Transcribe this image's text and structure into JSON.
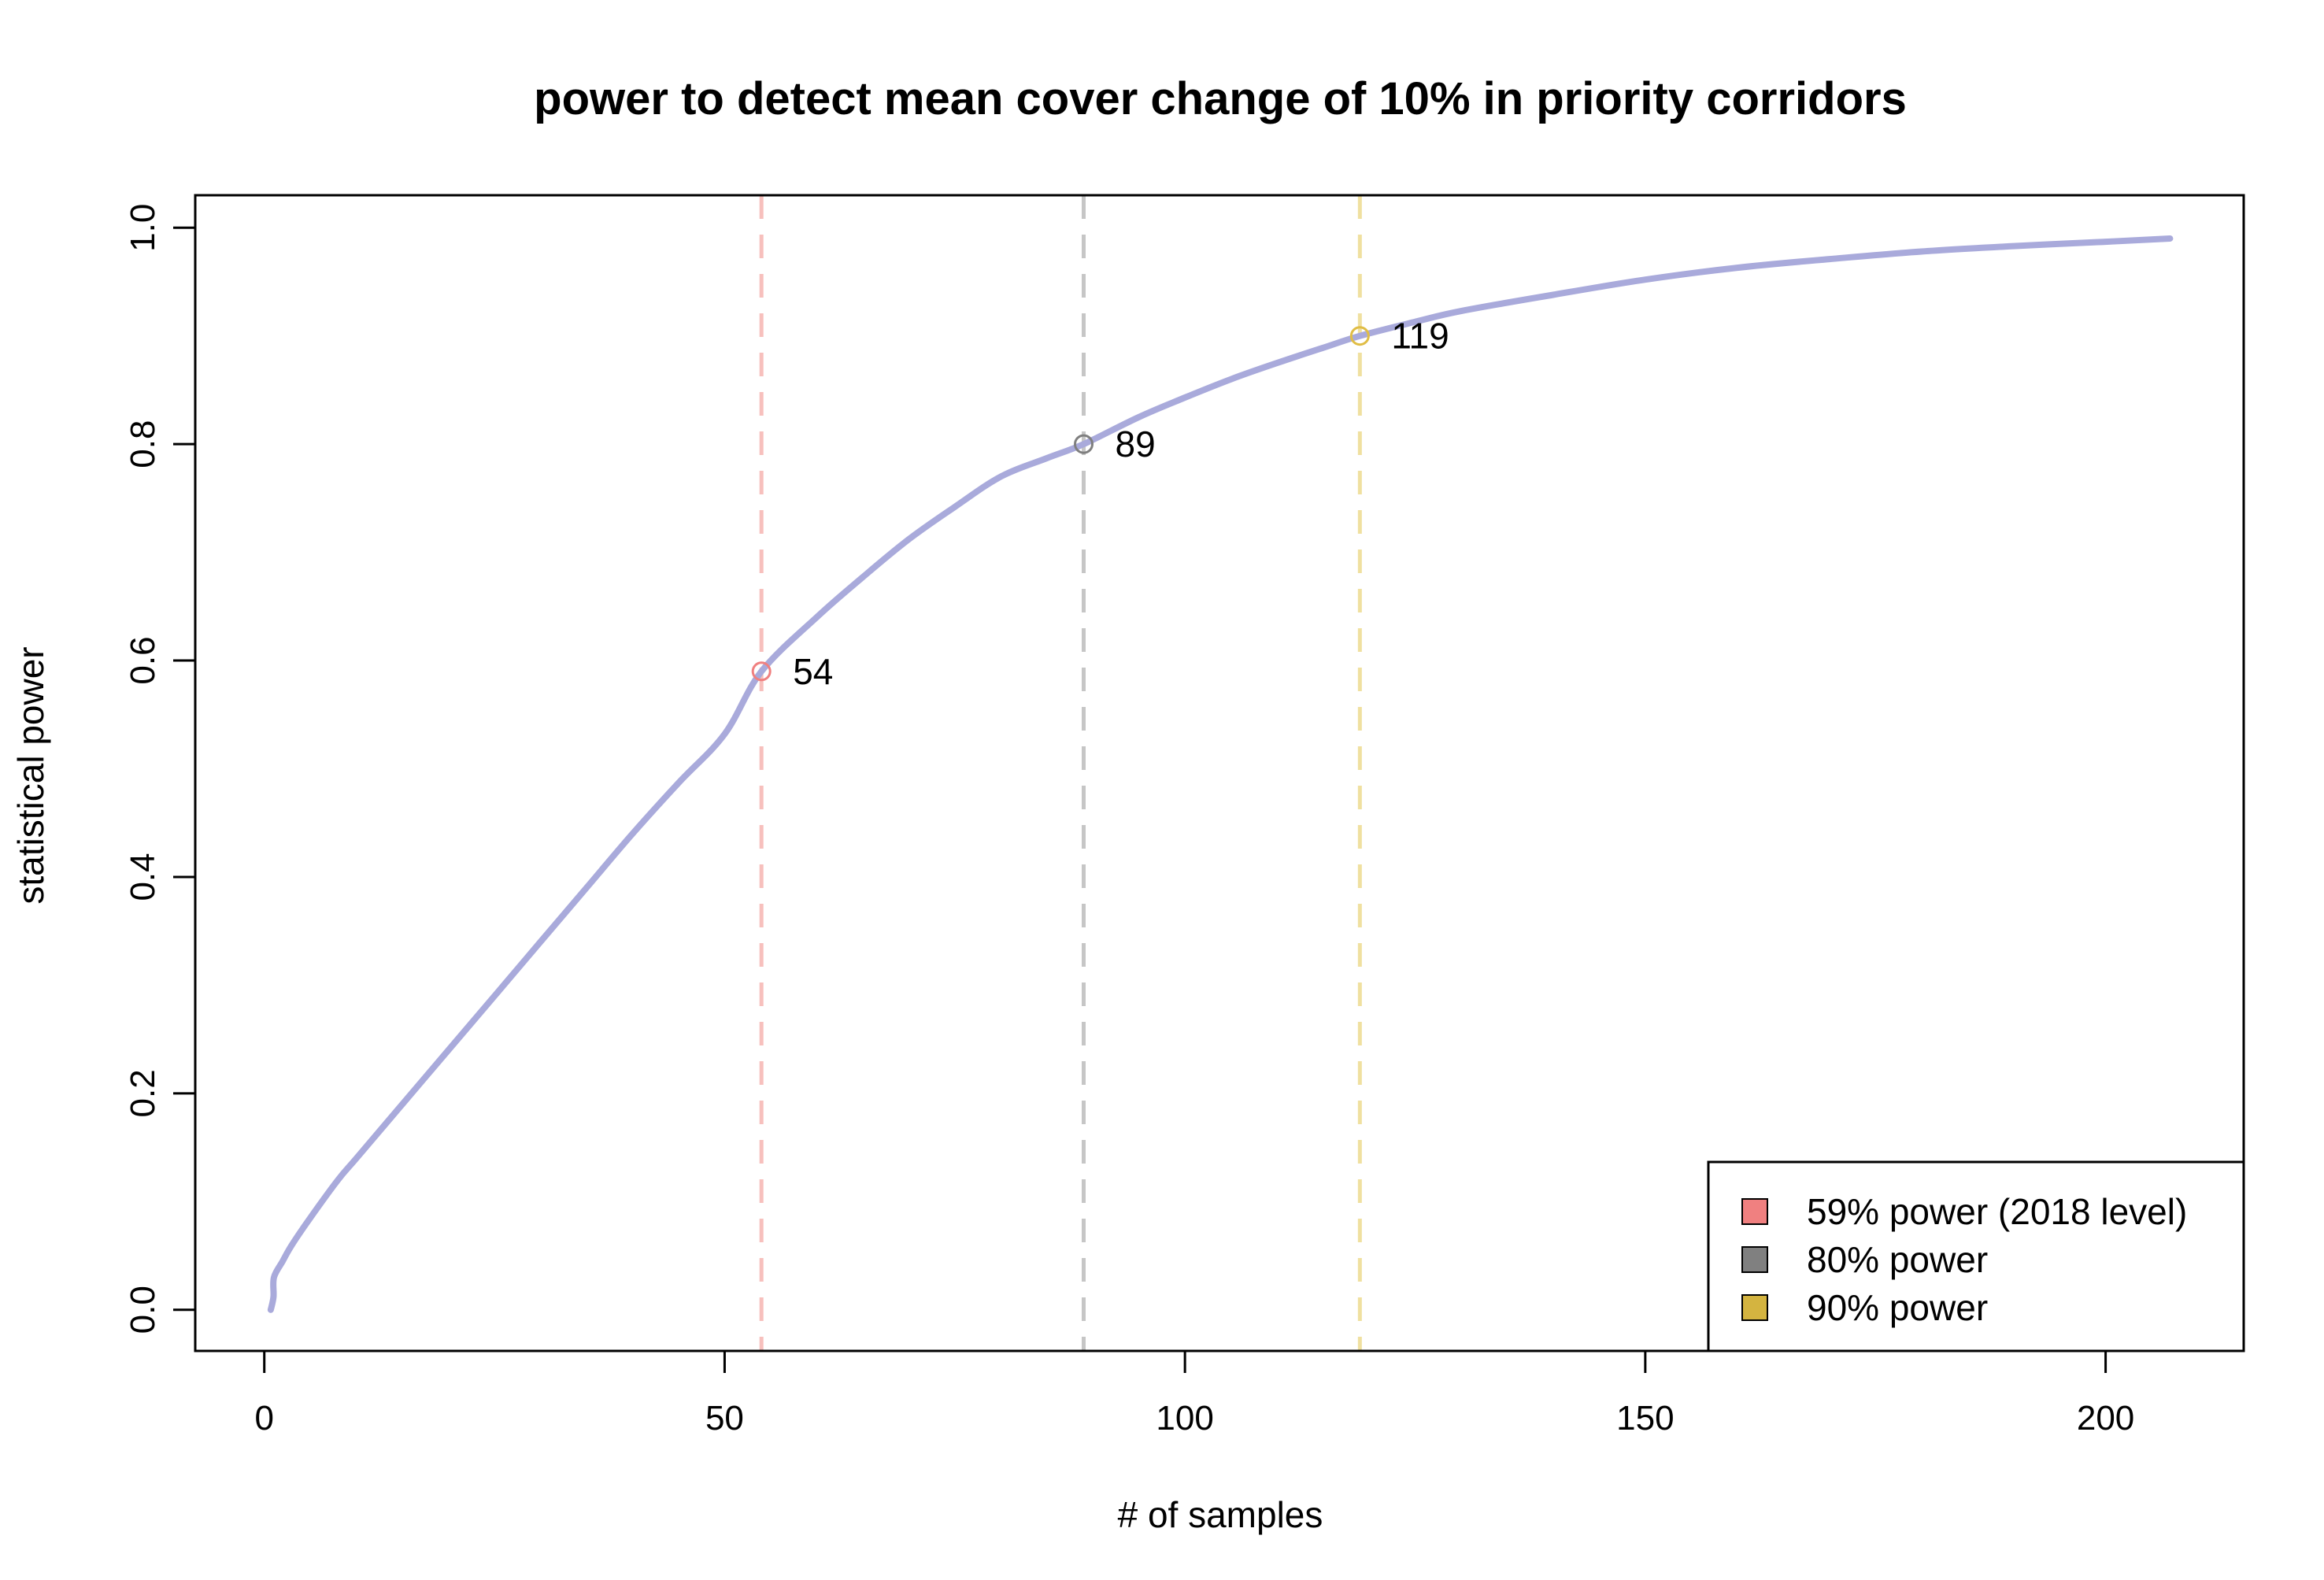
{
  "chart_data": {
    "type": "line",
    "title": "power to detect mean cover change of 10% in priority corridors",
    "xlabel": "# of samples",
    "ylabel": "statistical power",
    "xlim": [
      -7.5,
      215
    ],
    "ylim": [
      -0.038,
      1.03
    ],
    "x_ticks": [
      0,
      50,
      100,
      150,
      200
    ],
    "x_tick_labels": [
      "0",
      "50",
      "100",
      "150",
      "200"
    ],
    "y_ticks": [
      0.0,
      0.2,
      0.4,
      0.6,
      0.8,
      1.0
    ],
    "y_tick_labels": [
      "0.0",
      "0.2",
      "0.4",
      "0.6",
      "0.8",
      "1.0"
    ],
    "grid": false,
    "series": [
      {
        "color": "#a9aadb",
        "x": [
          0.7,
          1,
          1.05,
          2,
          3,
          5,
          8,
          10,
          15,
          20,
          25,
          30,
          35,
          40,
          45,
          50,
          54,
          60,
          65,
          70,
          75,
          80,
          85,
          89,
          95,
          100,
          105,
          110,
          115,
          119,
          125,
          130,
          140,
          150,
          160,
          170,
          180,
          190,
          200,
          207
        ],
        "y": [
          0.0,
          0.012,
          0.03,
          0.045,
          0.06,
          0.085,
          0.12,
          0.14,
          0.19,
          0.24,
          0.29,
          0.34,
          0.39,
          0.44,
          0.487,
          0.532,
          0.59,
          0.64,
          0.677,
          0.712,
          0.742,
          0.77,
          0.787,
          0.8,
          0.825,
          0.843,
          0.86,
          0.875,
          0.889,
          0.9,
          0.913,
          0.923,
          0.938,
          0.952,
          0.963,
          0.971,
          0.978,
          0.983,
          0.987,
          0.99
        ]
      }
    ],
    "markers": [
      {
        "x": 54,
        "y": 0.59,
        "label": "54",
        "color": "#f08080",
        "line_color": "#f7c0bd"
      },
      {
        "x": 89,
        "y": 0.8,
        "label": "89",
        "color": "#7f7f7f",
        "line_color": "#c6c6c6"
      },
      {
        "x": 119,
        "y": 0.9,
        "label": "119",
        "color": "#e0bd45",
        "line_color": "#f0e0a0"
      }
    ],
    "legend": {
      "position": "bottom-right",
      "entries": [
        {
          "label": "59% power (2018 level)",
          "color": "#f08080"
        },
        {
          "label": "80% power",
          "color": "#808080"
        },
        {
          "label": "90% power",
          "color": "#d4b440"
        }
      ]
    }
  }
}
